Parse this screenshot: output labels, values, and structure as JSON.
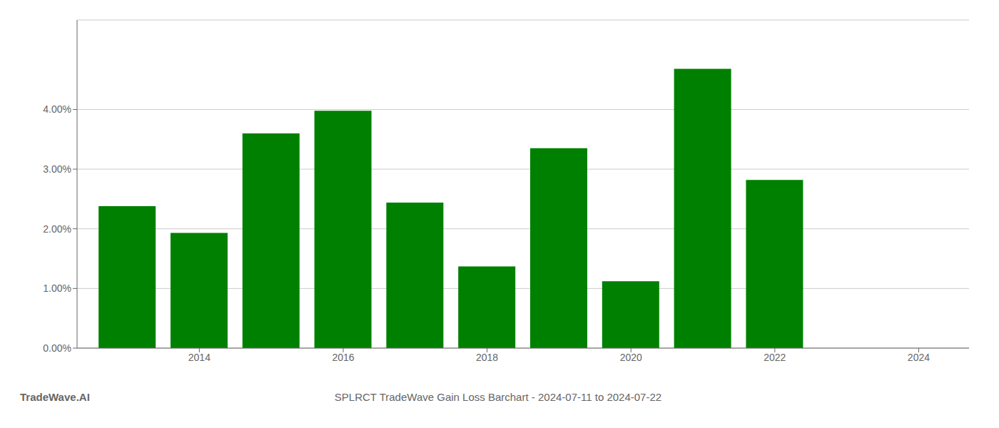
{
  "chart_data": {
    "type": "bar",
    "title": "SPLRCT TradeWave Gain Loss Barchart - 2024-07-11 to 2024-07-22",
    "annotations": [
      "TradeWave.AI"
    ],
    "x": [
      2013,
      2014,
      2015,
      2016,
      2017,
      2018,
      2019,
      2020,
      2021,
      2022,
      2023
    ],
    "values": [
      0.0238,
      0.0193,
      0.036,
      0.0398,
      0.0244,
      0.0137,
      0.0335,
      0.0112,
      0.0468,
      0.0282,
      0.0
    ],
    "color": "#008000",
    "xlim": [
      2012.3,
      2024.7
    ],
    "xticks": [
      2014,
      2016,
      2018,
      2020,
      2022,
      2024
    ],
    "ylim": [
      0,
      0.055
    ],
    "yticks": [
      {
        "value": 0.0,
        "label": "0.00%"
      },
      {
        "value": 0.01,
        "label": "1.00%"
      },
      {
        "value": 0.02,
        "label": "2.00%"
      },
      {
        "value": 0.03,
        "label": "3.00%"
      },
      {
        "value": 0.04,
        "label": "4.00%"
      }
    ],
    "grid": true
  }
}
